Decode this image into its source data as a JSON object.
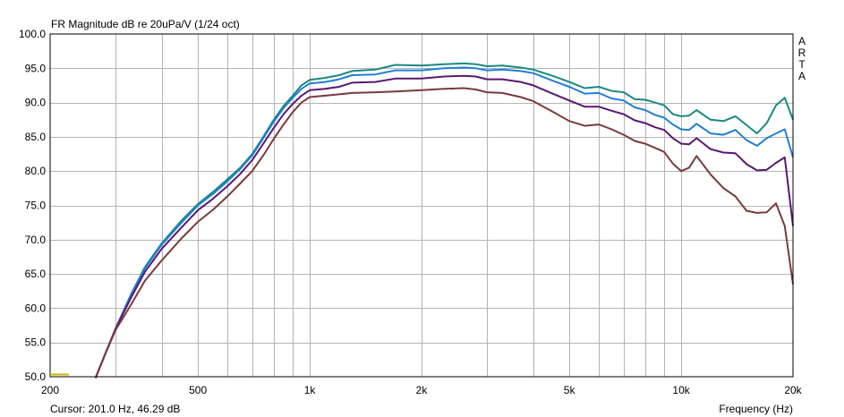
{
  "chart_data": {
    "type": "line",
    "title": "FR Magnitude dB re 20uPa/V (1/24 oct)",
    "brand": "ARTA",
    "xlabel": "Frequency (Hz)",
    "ylabel": "",
    "xscale": "log",
    "xlim": [
      200,
      20000
    ],
    "ylim": [
      50,
      100
    ],
    "grid": true,
    "cursor_text": "Cursor: 201.0 Hz, 46.29 dB",
    "x_major_ticks": [
      {
        "value": 200,
        "label": "200"
      },
      {
        "value": 500,
        "label": "500"
      },
      {
        "value": 1000,
        "label": "1k"
      },
      {
        "value": 2000,
        "label": "2k"
      },
      {
        "value": 5000,
        "label": "5k"
      },
      {
        "value": 10000,
        "label": "10k"
      },
      {
        "value": 20000,
        "label": "20k"
      }
    ],
    "y_ticks": [
      {
        "value": 100,
        "label": "100.0"
      },
      {
        "value": 95,
        "label": "95.0"
      },
      {
        "value": 90,
        "label": "90.0"
      },
      {
        "value": 85,
        "label": "85.0"
      },
      {
        "value": 80,
        "label": "80.0"
      },
      {
        "value": 75,
        "label": "75.0"
      },
      {
        "value": 70,
        "label": "70.0"
      },
      {
        "value": 65,
        "label": "65.0"
      },
      {
        "value": 60,
        "label": "60.0"
      },
      {
        "value": 55,
        "label": "55.0"
      },
      {
        "value": 50,
        "label": "50.0"
      }
    ],
    "series": [
      {
        "color": "#1a8a80",
        "points": [
          [
            265,
            49.8
          ],
          [
            280,
            53
          ],
          [
            300,
            57
          ],
          [
            330,
            62
          ],
          [
            360,
            66
          ],
          [
            400,
            69.5
          ],
          [
            450,
            72.7
          ],
          [
            500,
            75.2
          ],
          [
            550,
            77
          ],
          [
            600,
            78.8
          ],
          [
            650,
            80.5
          ],
          [
            700,
            82.5
          ],
          [
            750,
            85
          ],
          [
            800,
            87.5
          ],
          [
            850,
            89.5
          ],
          [
            900,
            91
          ],
          [
            950,
            92.5
          ],
          [
            1000,
            93.3
          ],
          [
            1100,
            93.6
          ],
          [
            1200,
            94
          ],
          [
            1300,
            94.6
          ],
          [
            1500,
            94.8
          ],
          [
            1700,
            95.5
          ],
          [
            2000,
            95.4
          ],
          [
            2300,
            95.6
          ],
          [
            2600,
            95.7
          ],
          [
            2800,
            95.6
          ],
          [
            3000,
            95.3
          ],
          [
            3300,
            95.4
          ],
          [
            3700,
            95.1
          ],
          [
            4000,
            94.8
          ],
          [
            4500,
            93.9
          ],
          [
            5000,
            93
          ],
          [
            5500,
            92.1
          ],
          [
            6000,
            92.3
          ],
          [
            6500,
            91.7
          ],
          [
            7000,
            91.5
          ],
          [
            7500,
            90.5
          ],
          [
            8000,
            90.4
          ],
          [
            8500,
            90
          ],
          [
            9000,
            89.6
          ],
          [
            9500,
            88.3
          ],
          [
            10000,
            88
          ],
          [
            10500,
            88.1
          ],
          [
            11000,
            88.9
          ],
          [
            12000,
            87.5
          ],
          [
            13000,
            87.3
          ],
          [
            14000,
            88
          ],
          [
            15000,
            86.7
          ],
          [
            16000,
            85.5
          ],
          [
            17000,
            87
          ],
          [
            18000,
            89.6
          ],
          [
            19000,
            90.7
          ],
          [
            20000,
            87.5
          ]
        ]
      },
      {
        "color": "#1f7fd6",
        "points": [
          [
            265,
            49.8
          ],
          [
            280,
            53
          ],
          [
            300,
            57
          ],
          [
            330,
            62
          ],
          [
            360,
            65.8
          ],
          [
            400,
            69.3
          ],
          [
            450,
            72.4
          ],
          [
            500,
            75
          ],
          [
            550,
            76.7
          ],
          [
            600,
            78.5
          ],
          [
            650,
            80.3
          ],
          [
            700,
            82.3
          ],
          [
            750,
            84.8
          ],
          [
            800,
            87.2
          ],
          [
            850,
            89.2
          ],
          [
            900,
            90.7
          ],
          [
            950,
            92
          ],
          [
            1000,
            92.8
          ],
          [
            1100,
            93
          ],
          [
            1200,
            93.4
          ],
          [
            1300,
            94
          ],
          [
            1500,
            94.1
          ],
          [
            1700,
            94.7
          ],
          [
            2000,
            94.7
          ],
          [
            2300,
            95
          ],
          [
            2600,
            95.1
          ],
          [
            2800,
            95
          ],
          [
            3000,
            94.7
          ],
          [
            3300,
            94.8
          ],
          [
            3700,
            94.6
          ],
          [
            4000,
            94.3
          ],
          [
            4500,
            93.2
          ],
          [
            5000,
            92.3
          ],
          [
            5500,
            91.3
          ],
          [
            6000,
            91.4
          ],
          [
            6500,
            90.6
          ],
          [
            7000,
            90.3
          ],
          [
            7500,
            89.3
          ],
          [
            8000,
            88.9
          ],
          [
            8500,
            88.2
          ],
          [
            9000,
            87.8
          ],
          [
            9500,
            86.8
          ],
          [
            10000,
            86.1
          ],
          [
            10500,
            86
          ],
          [
            11000,
            86.9
          ],
          [
            12000,
            85.5
          ],
          [
            13000,
            85.3
          ],
          [
            14000,
            86
          ],
          [
            15000,
            84.5
          ],
          [
            16000,
            83.7
          ],
          [
            17000,
            84.8
          ],
          [
            18000,
            85.5
          ],
          [
            19000,
            86.1
          ],
          [
            20000,
            82
          ]
        ]
      },
      {
        "color": "#5a1870",
        "points": [
          [
            265,
            49.8
          ],
          [
            280,
            53
          ],
          [
            300,
            57
          ],
          [
            330,
            61.5
          ],
          [
            360,
            65.3
          ],
          [
            400,
            68.7
          ],
          [
            450,
            71.7
          ],
          [
            500,
            74.3
          ],
          [
            550,
            76
          ],
          [
            600,
            77.8
          ],
          [
            650,
            79.6
          ],
          [
            700,
            81.6
          ],
          [
            750,
            84
          ],
          [
            800,
            86.3
          ],
          [
            850,
            88.3
          ],
          [
            900,
            89.8
          ],
          [
            950,
            91
          ],
          [
            1000,
            91.8
          ],
          [
            1100,
            92
          ],
          [
            1200,
            92.3
          ],
          [
            1300,
            92.9
          ],
          [
            1500,
            93
          ],
          [
            1700,
            93.5
          ],
          [
            2000,
            93.5
          ],
          [
            2300,
            93.8
          ],
          [
            2600,
            93.9
          ],
          [
            2800,
            93.8
          ],
          [
            3000,
            93.4
          ],
          [
            3300,
            93.4
          ],
          [
            3700,
            93
          ],
          [
            4000,
            92.5
          ],
          [
            4500,
            91.3
          ],
          [
            5000,
            90.3
          ],
          [
            5500,
            89.4
          ],
          [
            6000,
            89.4
          ],
          [
            6500,
            88.8
          ],
          [
            7000,
            88.3
          ],
          [
            7500,
            87.4
          ],
          [
            8000,
            87
          ],
          [
            8500,
            86.4
          ],
          [
            9000,
            86
          ],
          [
            9500,
            84.8
          ],
          [
            10000,
            84
          ],
          [
            10500,
            83.9
          ],
          [
            11000,
            84.8
          ],
          [
            12000,
            83.2
          ],
          [
            13000,
            82.7
          ],
          [
            14000,
            82.6
          ],
          [
            15000,
            81
          ],
          [
            16000,
            80.1
          ],
          [
            17000,
            80.2
          ],
          [
            18000,
            81.2
          ],
          [
            19000,
            82
          ],
          [
            20000,
            72
          ]
        ]
      },
      {
        "color": "#7a3a3a",
        "points": [
          [
            265,
            49.8
          ],
          [
            280,
            53
          ],
          [
            300,
            56.8
          ],
          [
            330,
            60.5
          ],
          [
            360,
            64
          ],
          [
            400,
            67
          ],
          [
            450,
            70.1
          ],
          [
            500,
            72.6
          ],
          [
            550,
            74.4
          ],
          [
            600,
            76.3
          ],
          [
            650,
            78.2
          ],
          [
            700,
            80
          ],
          [
            750,
            82.3
          ],
          [
            800,
            84.7
          ],
          [
            850,
            86.8
          ],
          [
            900,
            88.6
          ],
          [
            950,
            90
          ],
          [
            1000,
            90.8
          ],
          [
            1100,
            91
          ],
          [
            1200,
            91.2
          ],
          [
            1300,
            91.4
          ],
          [
            1500,
            91.5
          ],
          [
            1700,
            91.6
          ],
          [
            2000,
            91.8
          ],
          [
            2300,
            92
          ],
          [
            2600,
            92.1
          ],
          [
            2800,
            91.9
          ],
          [
            3000,
            91.5
          ],
          [
            3300,
            91.4
          ],
          [
            3700,
            90.8
          ],
          [
            4000,
            90.2
          ],
          [
            4500,
            88.7
          ],
          [
            5000,
            87.3
          ],
          [
            5500,
            86.6
          ],
          [
            6000,
            86.8
          ],
          [
            6500,
            86.1
          ],
          [
            7000,
            85.3
          ],
          [
            7500,
            84.4
          ],
          [
            8000,
            84
          ],
          [
            8500,
            83.4
          ],
          [
            9000,
            82.8
          ],
          [
            9500,
            81.1
          ],
          [
            10000,
            80
          ],
          [
            10500,
            80.5
          ],
          [
            11000,
            82.2
          ],
          [
            12000,
            79.5
          ],
          [
            13000,
            77.5
          ],
          [
            14000,
            76.3
          ],
          [
            15000,
            74.2
          ],
          [
            16000,
            73.9
          ],
          [
            17000,
            74
          ],
          [
            18000,
            75.3
          ],
          [
            19000,
            72
          ],
          [
            20000,
            63.5
          ]
        ]
      }
    ]
  }
}
